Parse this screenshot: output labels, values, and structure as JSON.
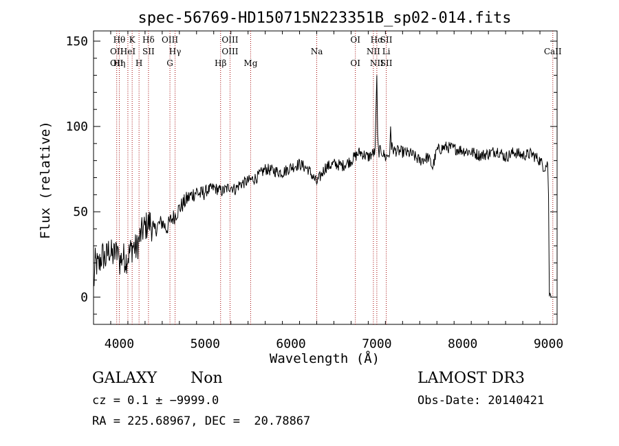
{
  "chart_data": {
    "type": "line",
    "title": "spec-56769-HD150715N223351B_sp02-014.fits",
    "xlabel": "Wavelength (Å)",
    "ylabel": "Flux (relative)",
    "xlim": [
      3700,
      9100
    ],
    "ylim": [
      -16,
      156
    ],
    "xticks": [
      4000,
      5000,
      6000,
      7000,
      8000,
      9000
    ],
    "yticks": [
      0,
      50,
      100,
      150
    ],
    "grid": false,
    "series": [
      {
        "x": [
          3700,
          3720,
          3760,
          3800,
          3840,
          3880,
          3920,
          3960,
          3980,
          3990,
          4000,
          4040,
          4080,
          4120,
          4160,
          4200,
          4240,
          4280,
          4320,
          4360,
          4400,
          4450,
          4500,
          4550,
          4600,
          4650,
          4700,
          4750,
          4800,
          4850,
          4900,
          4950,
          5000,
          5100,
          5200,
          5300,
          5350,
          5400,
          5500,
          5600,
          5700,
          5800,
          5900,
          6000,
          6100,
          6200,
          6300,
          6400,
          6500,
          6600,
          6700,
          6800,
          6900,
          6950,
          6980,
          7000,
          7010,
          7020,
          7050,
          7100,
          7150,
          7160,
          7170,
          7200,
          7300,
          7400,
          7500,
          7600,
          7650,
          7700,
          7800,
          7900,
          8000,
          8100,
          8200,
          8300,
          8400,
          8500,
          8600,
          8700,
          8800,
          8900,
          8950,
          8990,
          9000,
          9010,
          9030
        ],
        "y": [
          5,
          20,
          18,
          25,
          22,
          28,
          24,
          26,
          30,
          28,
          20,
          24,
          22,
          26,
          30,
          28,
          35,
          40,
          42,
          44,
          38,
          42,
          44,
          40,
          45,
          48,
          52,
          55,
          58,
          60,
          62,
          60,
          62,
          64,
          62,
          65,
          63,
          66,
          68,
          70,
          75,
          74,
          73,
          76,
          78,
          75,
          67,
          76,
          78,
          77,
          80,
          85,
          82,
          84,
          85,
          130,
          95,
          85,
          86,
          82,
          84,
          100,
          88,
          86,
          85,
          84,
          80,
          82,
          76,
          86,
          88,
          87,
          86,
          85,
          83,
          84,
          86,
          82,
          85,
          83,
          84,
          80,
          76,
          78,
          60,
          2,
          0
        ]
      }
    ],
    "lines": [
      {
        "x": 3970,
        "labels": [
          "",
          "OII",
          "OII"
        ]
      },
      {
        "x": 4000,
        "labels": [
          "Hθ",
          "",
          "Hη"
        ]
      },
      {
        "x": 4100,
        "labels": [
          "",
          "HeI",
          ""
        ]
      },
      {
        "x": 4150,
        "labels": [
          "K",
          "",
          ""
        ]
      },
      {
        "x": 4230,
        "labels": [
          "",
          "",
          "H"
        ]
      },
      {
        "x": 4340,
        "labels": [
          "Hδ",
          "SII",
          ""
        ]
      },
      {
        "x": 4590,
        "labels": [
          "OIII",
          "",
          "G"
        ]
      },
      {
        "x": 4650,
        "labels": [
          "",
          "Hγ",
          ""
        ]
      },
      {
        "x": 5180,
        "labels": [
          "",
          "",
          "Hβ"
        ]
      },
      {
        "x": 5290,
        "labels": [
          "OIII",
          "OIII",
          ""
        ]
      },
      {
        "x": 5530,
        "labels": [
          "",
          "",
          "Mg"
        ]
      },
      {
        "x": 6300,
        "labels": [
          "",
          "Na",
          ""
        ]
      },
      {
        "x": 6750,
        "labels": [
          "OI",
          "",
          "OI"
        ]
      },
      {
        "x": 6960,
        "labels": [
          "",
          "NII",
          ""
        ]
      },
      {
        "x": 7000,
        "labels": [
          "Hα",
          "",
          "NII"
        ]
      },
      {
        "x": 7110,
        "labels": [
          "SII",
          "Li",
          "SII"
        ]
      },
      {
        "x": 9050,
        "labels": [
          "",
          "CaII",
          ""
        ]
      }
    ]
  },
  "info": {
    "class": "GALAXY",
    "subclass": "Non",
    "survey": "LAMOST DR3",
    "cz": "cz = 0.1 ± −9999.0",
    "obs_date": "Obs-Date: 20140421",
    "radec": "RA = 225.68967, DEC =  20.78867"
  }
}
